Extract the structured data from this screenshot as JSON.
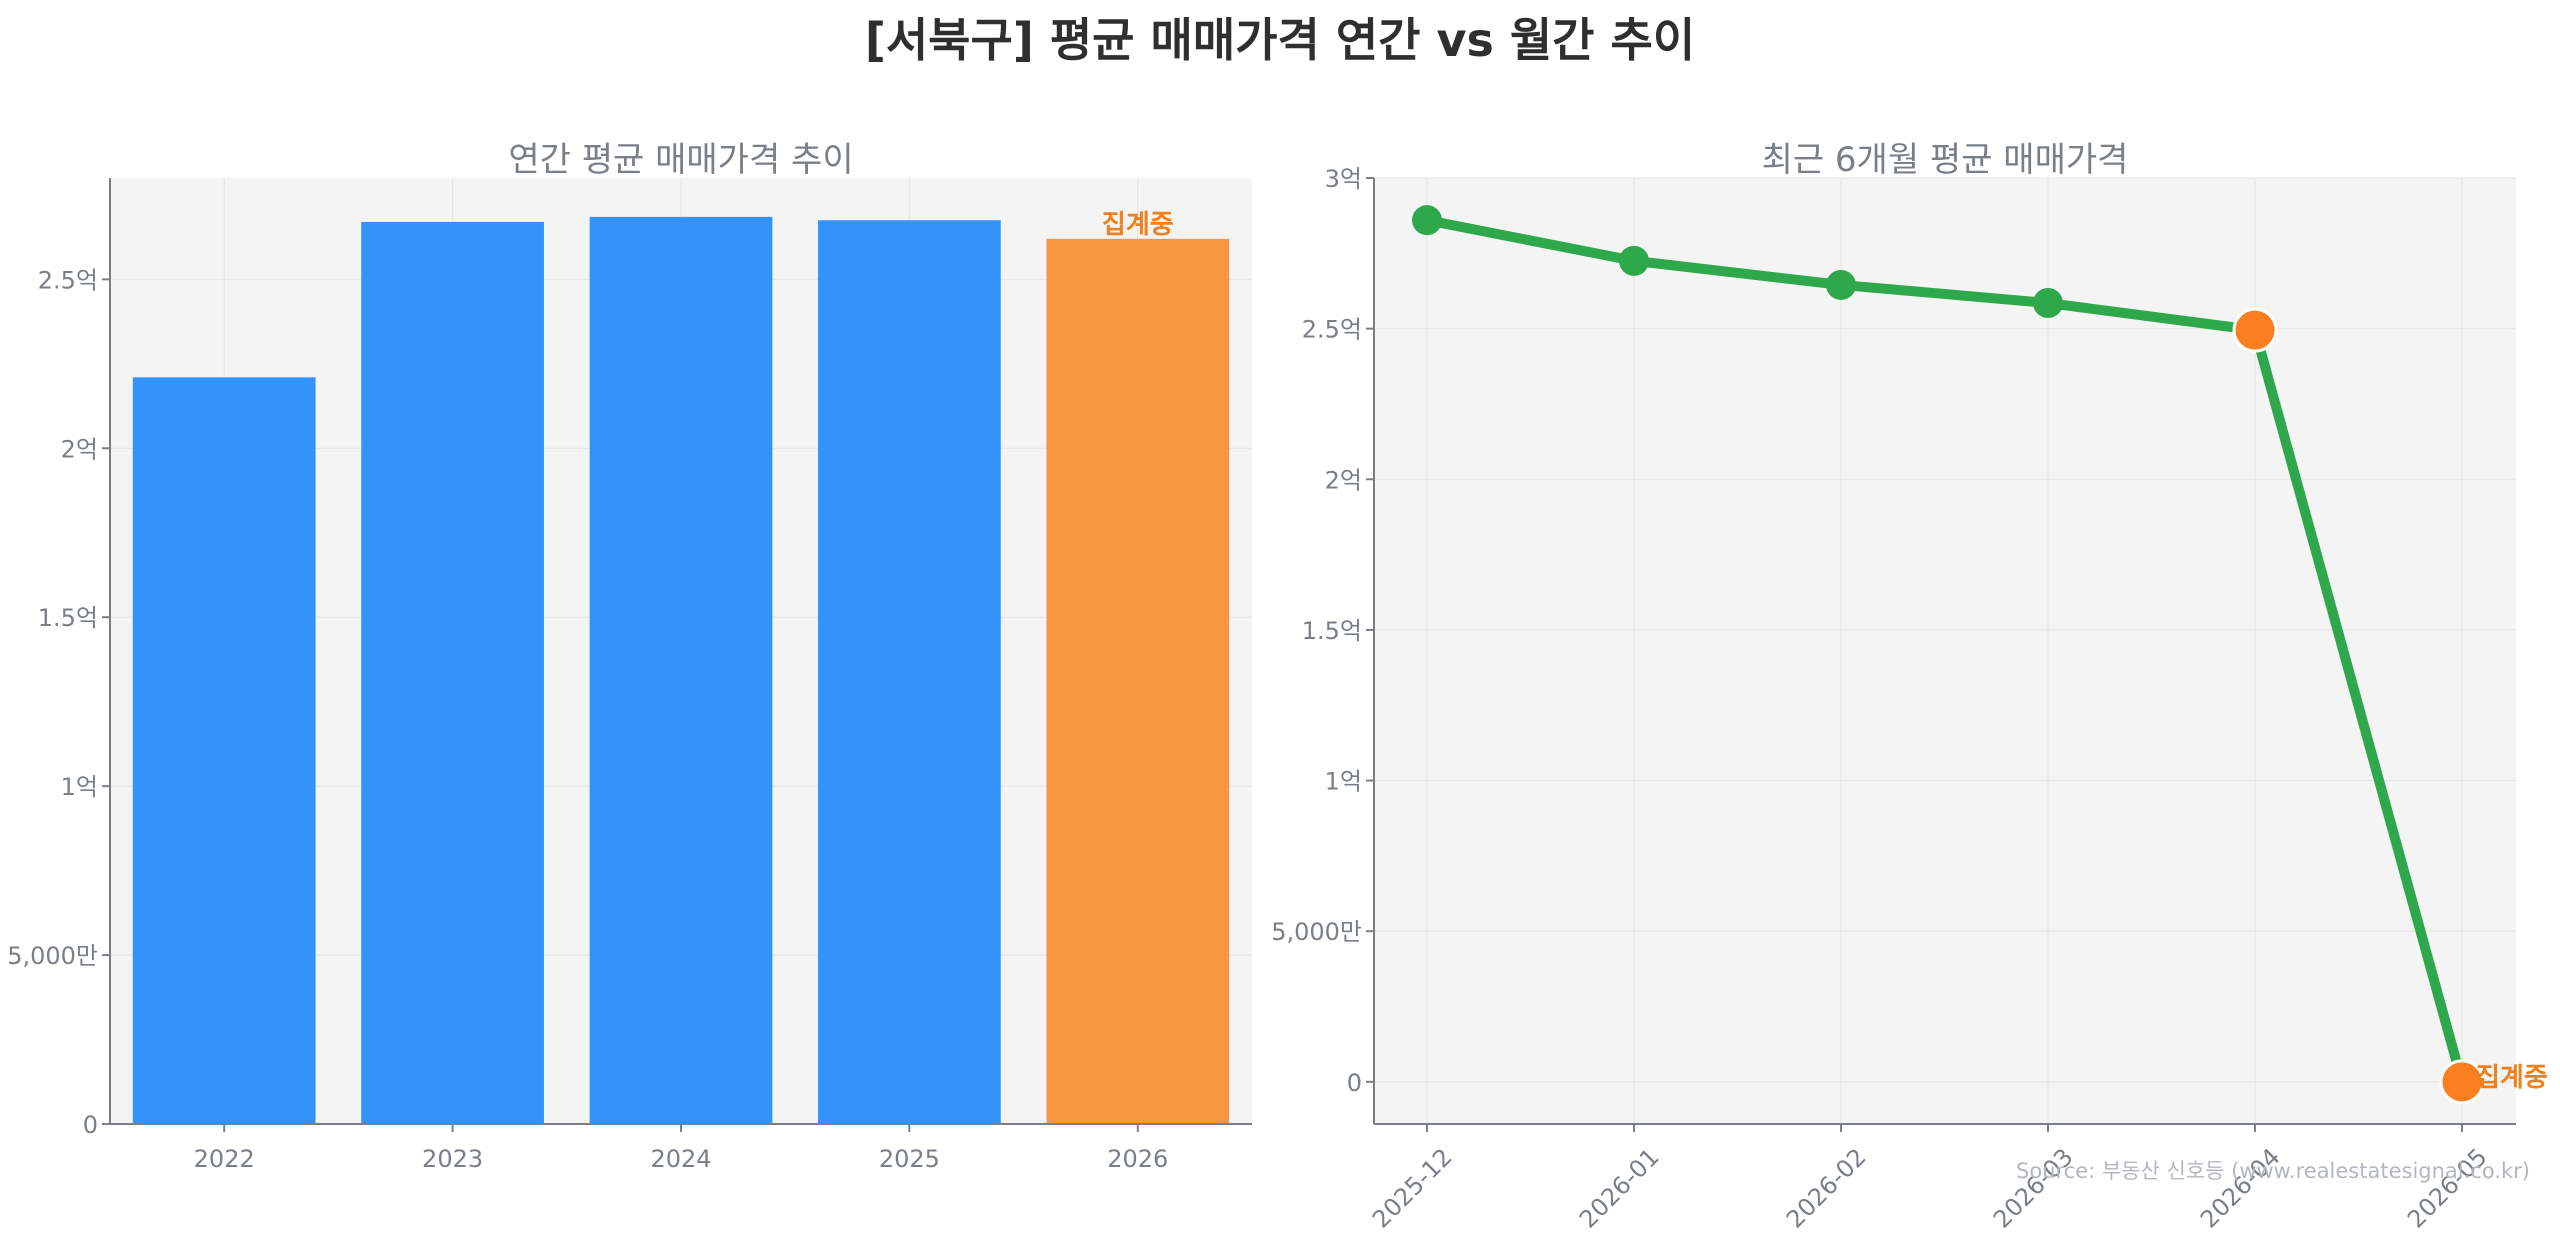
{
  "title": "[서북구] 평균 매매가격 연간 vs 월간 추이",
  "source": "Source: 부동산 신호등 (www.realestatesignal.co.kr)",
  "colors": {
    "bar": "#3392fb",
    "bar_highlight": "#f89740",
    "line": "#2ea84a",
    "marker": "#2ea84a",
    "marker_highlight": "#fb7f1e",
    "annotation": "#f07f1d",
    "plot_bg": "#f4f4f4",
    "grid": "#e4e4e4",
    "axis": "#7a7f87"
  },
  "chart_data": [
    {
      "type": "bar",
      "title": "연간 평균 매매가격 추이",
      "categories": [
        "2022",
        "2023",
        "2024",
        "2025",
        "2026"
      ],
      "values": [
        221000000,
        267000000,
        268500000,
        267500000,
        262000000
      ],
      "highlight_index": 4,
      "annotation": {
        "category": "2026",
        "text": "집계중"
      },
      "ylim": [
        0,
        280000000
      ],
      "yticks": [
        0,
        50000000,
        100000000,
        150000000,
        200000000,
        250000000
      ],
      "ytick_labels": [
        "0",
        "5,000만",
        "1억",
        "1.5억",
        "2억",
        "2.5억"
      ],
      "grid": true,
      "xlabel": "",
      "ylabel": ""
    },
    {
      "type": "line",
      "title": "최근 6개월 평균 매매가격",
      "x": [
        "2025-12",
        "2026-01",
        "2026-02",
        "2026-03",
        "2026-04",
        "2026-05"
      ],
      "values": [
        286000000,
        272500000,
        264500000,
        258500000,
        249500000,
        0
      ],
      "highlight_indices": [
        4,
        5
      ],
      "annotation": {
        "x": "2026-05",
        "text": "집계중"
      },
      "ylim": [
        -14000000,
        300000000
      ],
      "yticks": [
        0,
        50000000,
        100000000,
        150000000,
        200000000,
        250000000,
        300000000
      ],
      "ytick_labels": [
        "0",
        "5,000만",
        "1억",
        "1.5억",
        "2억",
        "2.5억",
        "3억"
      ],
      "grid": true,
      "xlabel": "",
      "ylabel": ""
    }
  ]
}
